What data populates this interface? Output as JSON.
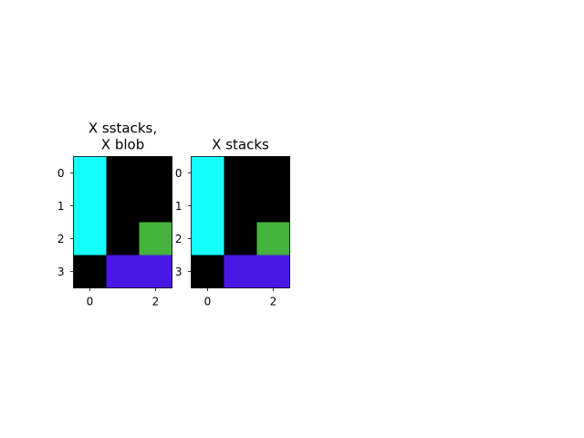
{
  "chart_data": [
    {
      "type": "heatmap",
      "title_lines": [
        "X sstacks,",
        "X blob"
      ],
      "rows": 4,
      "cols": 3,
      "x_ticks": [
        0,
        2
      ],
      "y_ticks": [
        0,
        1,
        2,
        3
      ],
      "grid": false,
      "cells": [
        [
          "#15ffff",
          "#000000",
          "#000000"
        ],
        [
          "#15ffff",
          "#000000",
          "#000000"
        ],
        [
          "#15ffff",
          "#000000",
          "#47b33f"
        ],
        [
          "#000000",
          "#4a18e4",
          "#4a18e4"
        ]
      ]
    },
    {
      "type": "heatmap",
      "title_lines": [
        "X stacks"
      ],
      "rows": 4,
      "cols": 3,
      "x_ticks": [
        0,
        2
      ],
      "y_ticks": [
        0,
        1,
        2,
        3
      ],
      "grid": false,
      "cells": [
        [
          "#15ffff",
          "#000000",
          "#000000"
        ],
        [
          "#15ffff",
          "#000000",
          "#000000"
        ],
        [
          "#15ffff",
          "#000000",
          "#47b33f"
        ],
        [
          "#000000",
          "#4a18e4",
          "#4a18e4"
        ]
      ]
    }
  ]
}
